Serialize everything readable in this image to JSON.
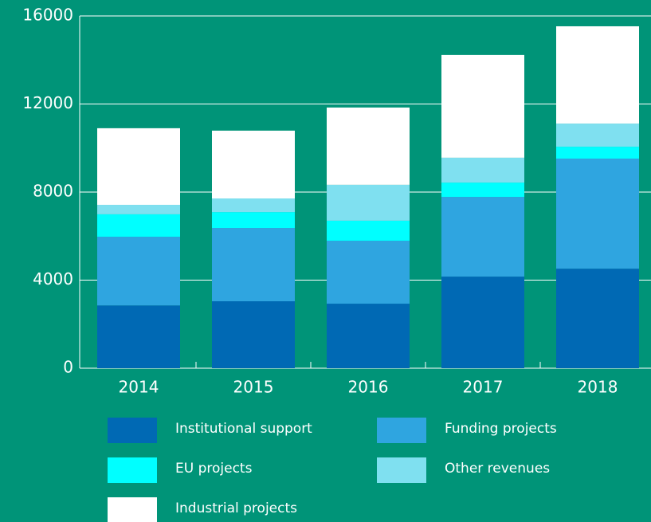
{
  "chart_data": {
    "type": "stacked_bar",
    "categories": [
      "2014",
      "2015",
      "2016",
      "2017",
      "2018"
    ],
    "series": [
      {
        "name": "Institutional support",
        "color": "#0069b4",
        "values": [
          2850,
          3040,
          2930,
          4160,
          4520
        ]
      },
      {
        "name": "Funding projects",
        "color": "#2fa5e0",
        "values": [
          3120,
          3330,
          2860,
          3620,
          5000
        ]
      },
      {
        "name": "EU projects",
        "color": "#00ffff",
        "values": [
          1020,
          720,
          910,
          650,
          540
        ]
      },
      {
        "name": "Other revenues",
        "color": "#7fe0f0",
        "values": [
          430,
          620,
          1630,
          1130,
          1050
        ]
      },
      {
        "name": "Industrial projects",
        "color": "#ffffff",
        "values": [
          3480,
          3080,
          3510,
          4670,
          4420
        ]
      }
    ],
    "ylim": [
      0,
      16000
    ],
    "yticks": [
      0,
      4000,
      8000,
      12000,
      16000
    ],
    "grid": true
  }
}
